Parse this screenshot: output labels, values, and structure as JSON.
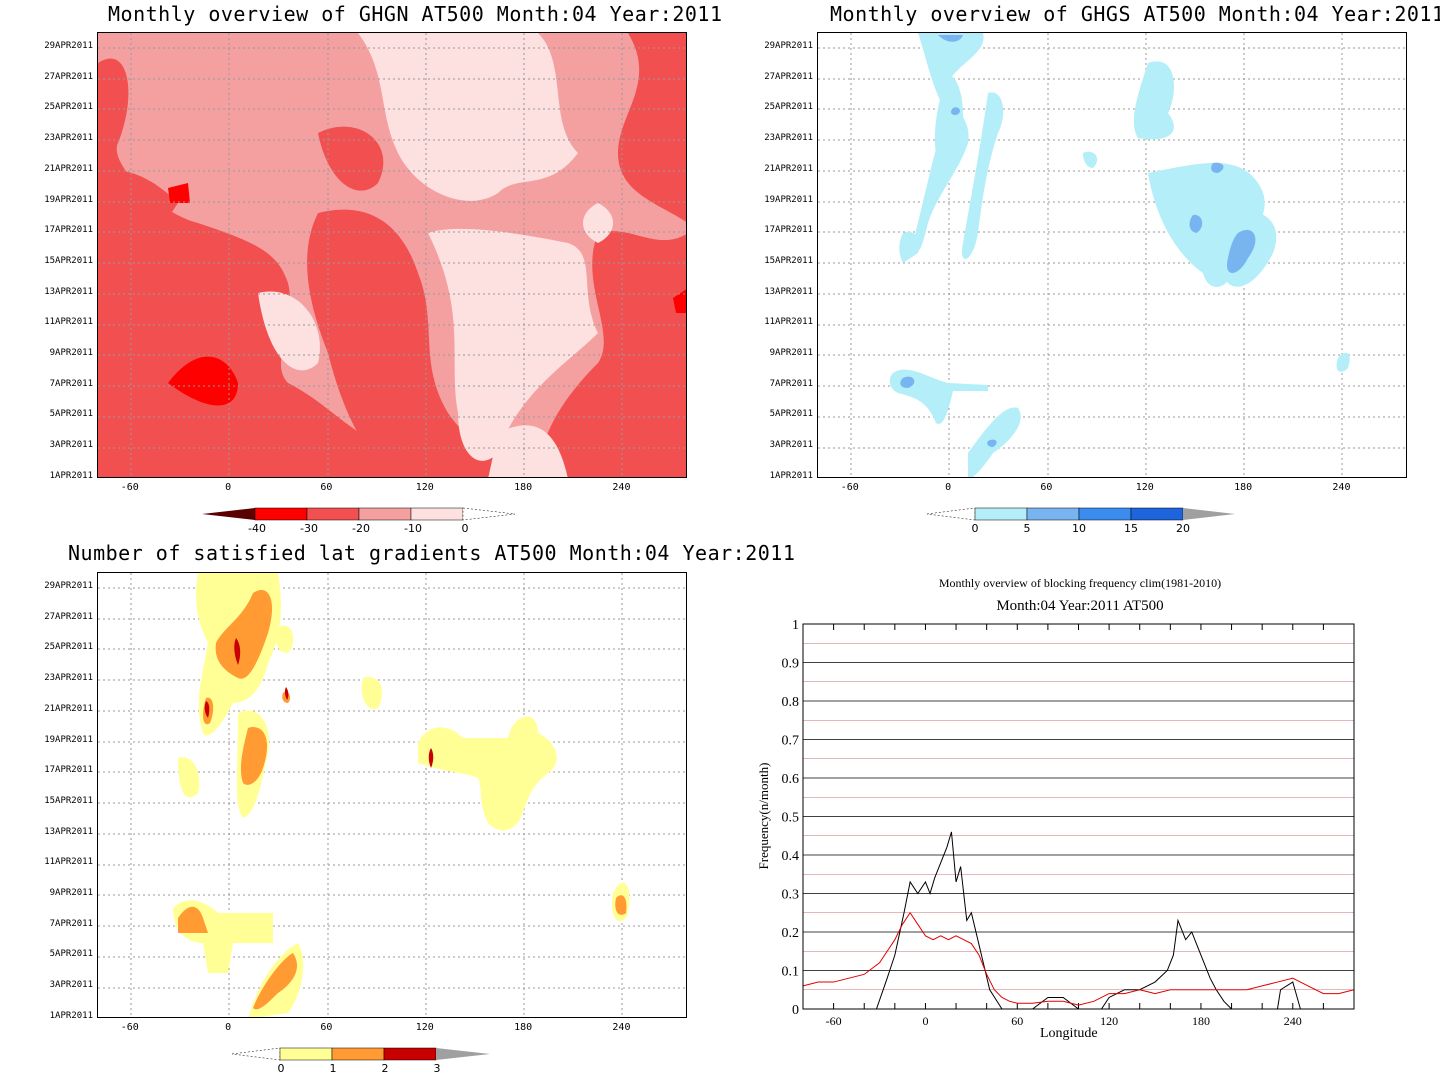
{
  "panels": {
    "ghgn": {
      "title": "Monthly overview of GHGN AT500 Month:04 Year:2011",
      "colorbar_labels": [
        "-40",
        "-30",
        "-20",
        "-10",
        "0"
      ],
      "colors": [
        "#5a0000",
        "#ff0000",
        "#f25050",
        "#f4a0a0",
        "#fde0e0",
        "#ffffff"
      ]
    },
    "ghgs": {
      "title": "Monthly overview of GHGS AT500 Month:04 Year:2011",
      "colorbar_labels": [
        "0",
        "5",
        "10",
        "15",
        "20"
      ],
      "colors": [
        "#ffffff",
        "#b4eef8",
        "#78b4f0",
        "#3c8cf0",
        "#1e64dc",
        "#a0a0a0"
      ]
    },
    "gradients": {
      "title": "Number of satisfied lat gradients AT500 Month:04 Year:2011",
      "colorbar_labels": [
        "0",
        "1",
        "2",
        "3"
      ],
      "colors": [
        "#ffffff",
        "#ffff96",
        "#ff9b32",
        "#c80000",
        "#a0a0a0"
      ]
    }
  },
  "y_ticks": [
    "29APR2011",
    "27APR2011",
    "25APR2011",
    "23APR2011",
    "21APR2011",
    "19APR2011",
    "17APR2011",
    "15APR2011",
    "13APR2011",
    "11APR2011",
    "9APR2011",
    "7APR2011",
    "5APR2011",
    "3APR2011",
    "1APR2011"
  ],
  "x_ticks": [
    "-60",
    "0",
    "60",
    "120",
    "180",
    "240"
  ],
  "chart_data": [
    {
      "type": "heatmap",
      "title": "Monthly overview of GHGN AT500 Month:04 Year:2011",
      "xlim": [
        -80,
        280
      ],
      "colorbar": [
        -40,
        -30,
        -20,
        -10,
        0
      ]
    },
    {
      "type": "heatmap",
      "title": "Monthly overview of GHGS AT500 Month:04 Year:2011",
      "xlim": [
        -80,
        280
      ],
      "colorbar": [
        0,
        5,
        10,
        15,
        20
      ]
    },
    {
      "type": "heatmap",
      "title": "Number of satisfied lat gradients AT500 Month:04 Year:2011",
      "xlim": [
        -80,
        280
      ],
      "colorbar": [
        0,
        1,
        2,
        3
      ]
    },
    {
      "type": "line",
      "title": "Monthly overview of blocking frequency clim(1981-2010)",
      "subtitle": "Month:04 Year:2011  AT500",
      "xlabel": "Longitude",
      "ylabel": "Frequency(n/month)",
      "xlim": [
        -80,
        280
      ],
      "ylim": [
        0,
        1
      ],
      "x_ticks": [
        "-60",
        "0",
        "60",
        "120",
        "180",
        "240"
      ],
      "y_ticks": [
        "0",
        "0.1",
        "0.2",
        "0.3",
        "0.4",
        "0.5",
        "0.6",
        "0.7",
        "0.8",
        "0.9",
        "1"
      ],
      "series": [
        {
          "color": "#000000",
          "x": [
            -80,
            -32,
            -25,
            -20,
            -14,
            -10,
            -5,
            0,
            3,
            6,
            10,
            14,
            17,
            20,
            23,
            27,
            30,
            36,
            42,
            50,
            70,
            80,
            90,
            100,
            115,
            120,
            130,
            140,
            150,
            158,
            162,
            165,
            170,
            174,
            178,
            182,
            186,
            190,
            195,
            200,
            205,
            230,
            232,
            240,
            245,
            280
          ],
          "y": [
            0,
            0,
            0.08,
            0.14,
            0.25,
            0.33,
            0.3,
            0.33,
            0.3,
            0.34,
            0.38,
            0.42,
            0.46,
            0.33,
            0.37,
            0.23,
            0.25,
            0.15,
            0.05,
            0,
            0,
            0.03,
            0.03,
            0,
            0,
            0.03,
            0.05,
            0.05,
            0.07,
            0.1,
            0.14,
            0.23,
            0.18,
            0.2,
            0.16,
            0.12,
            0.08,
            0.05,
            0.02,
            0,
            0,
            0,
            0.05,
            0.07,
            0,
            0
          ]
        },
        {
          "color": "#e00000",
          "x": [
            -80,
            -70,
            -60,
            -50,
            -40,
            -30,
            -25,
            -20,
            -15,
            -10,
            -5,
            0,
            5,
            10,
            15,
            20,
            25,
            30,
            35,
            40,
            45,
            50,
            55,
            60,
            70,
            80,
            90,
            100,
            110,
            120,
            130,
            140,
            150,
            160,
            170,
            180,
            190,
            200,
            210,
            220,
            230,
            240,
            250,
            260,
            270,
            280
          ],
          "y": [
            0.06,
            0.07,
            0.07,
            0.08,
            0.09,
            0.12,
            0.15,
            0.18,
            0.22,
            0.25,
            0.22,
            0.19,
            0.18,
            0.19,
            0.18,
            0.19,
            0.18,
            0.17,
            0.14,
            0.09,
            0.05,
            0.03,
            0.02,
            0.015,
            0.015,
            0.02,
            0.02,
            0.01,
            0.02,
            0.04,
            0.04,
            0.05,
            0.04,
            0.05,
            0.05,
            0.05,
            0.05,
            0.05,
            0.05,
            0.06,
            0.07,
            0.08,
            0.06,
            0.04,
            0.04,
            0.05
          ]
        }
      ]
    }
  ],
  "line_chart": {
    "title": "Monthly overview of blocking frequency clim(1981-2010)",
    "subtitle": "Month:04 Year:2011  AT500",
    "xlabel": "Longitude",
    "ylabel": "Frequency(n/month)"
  }
}
